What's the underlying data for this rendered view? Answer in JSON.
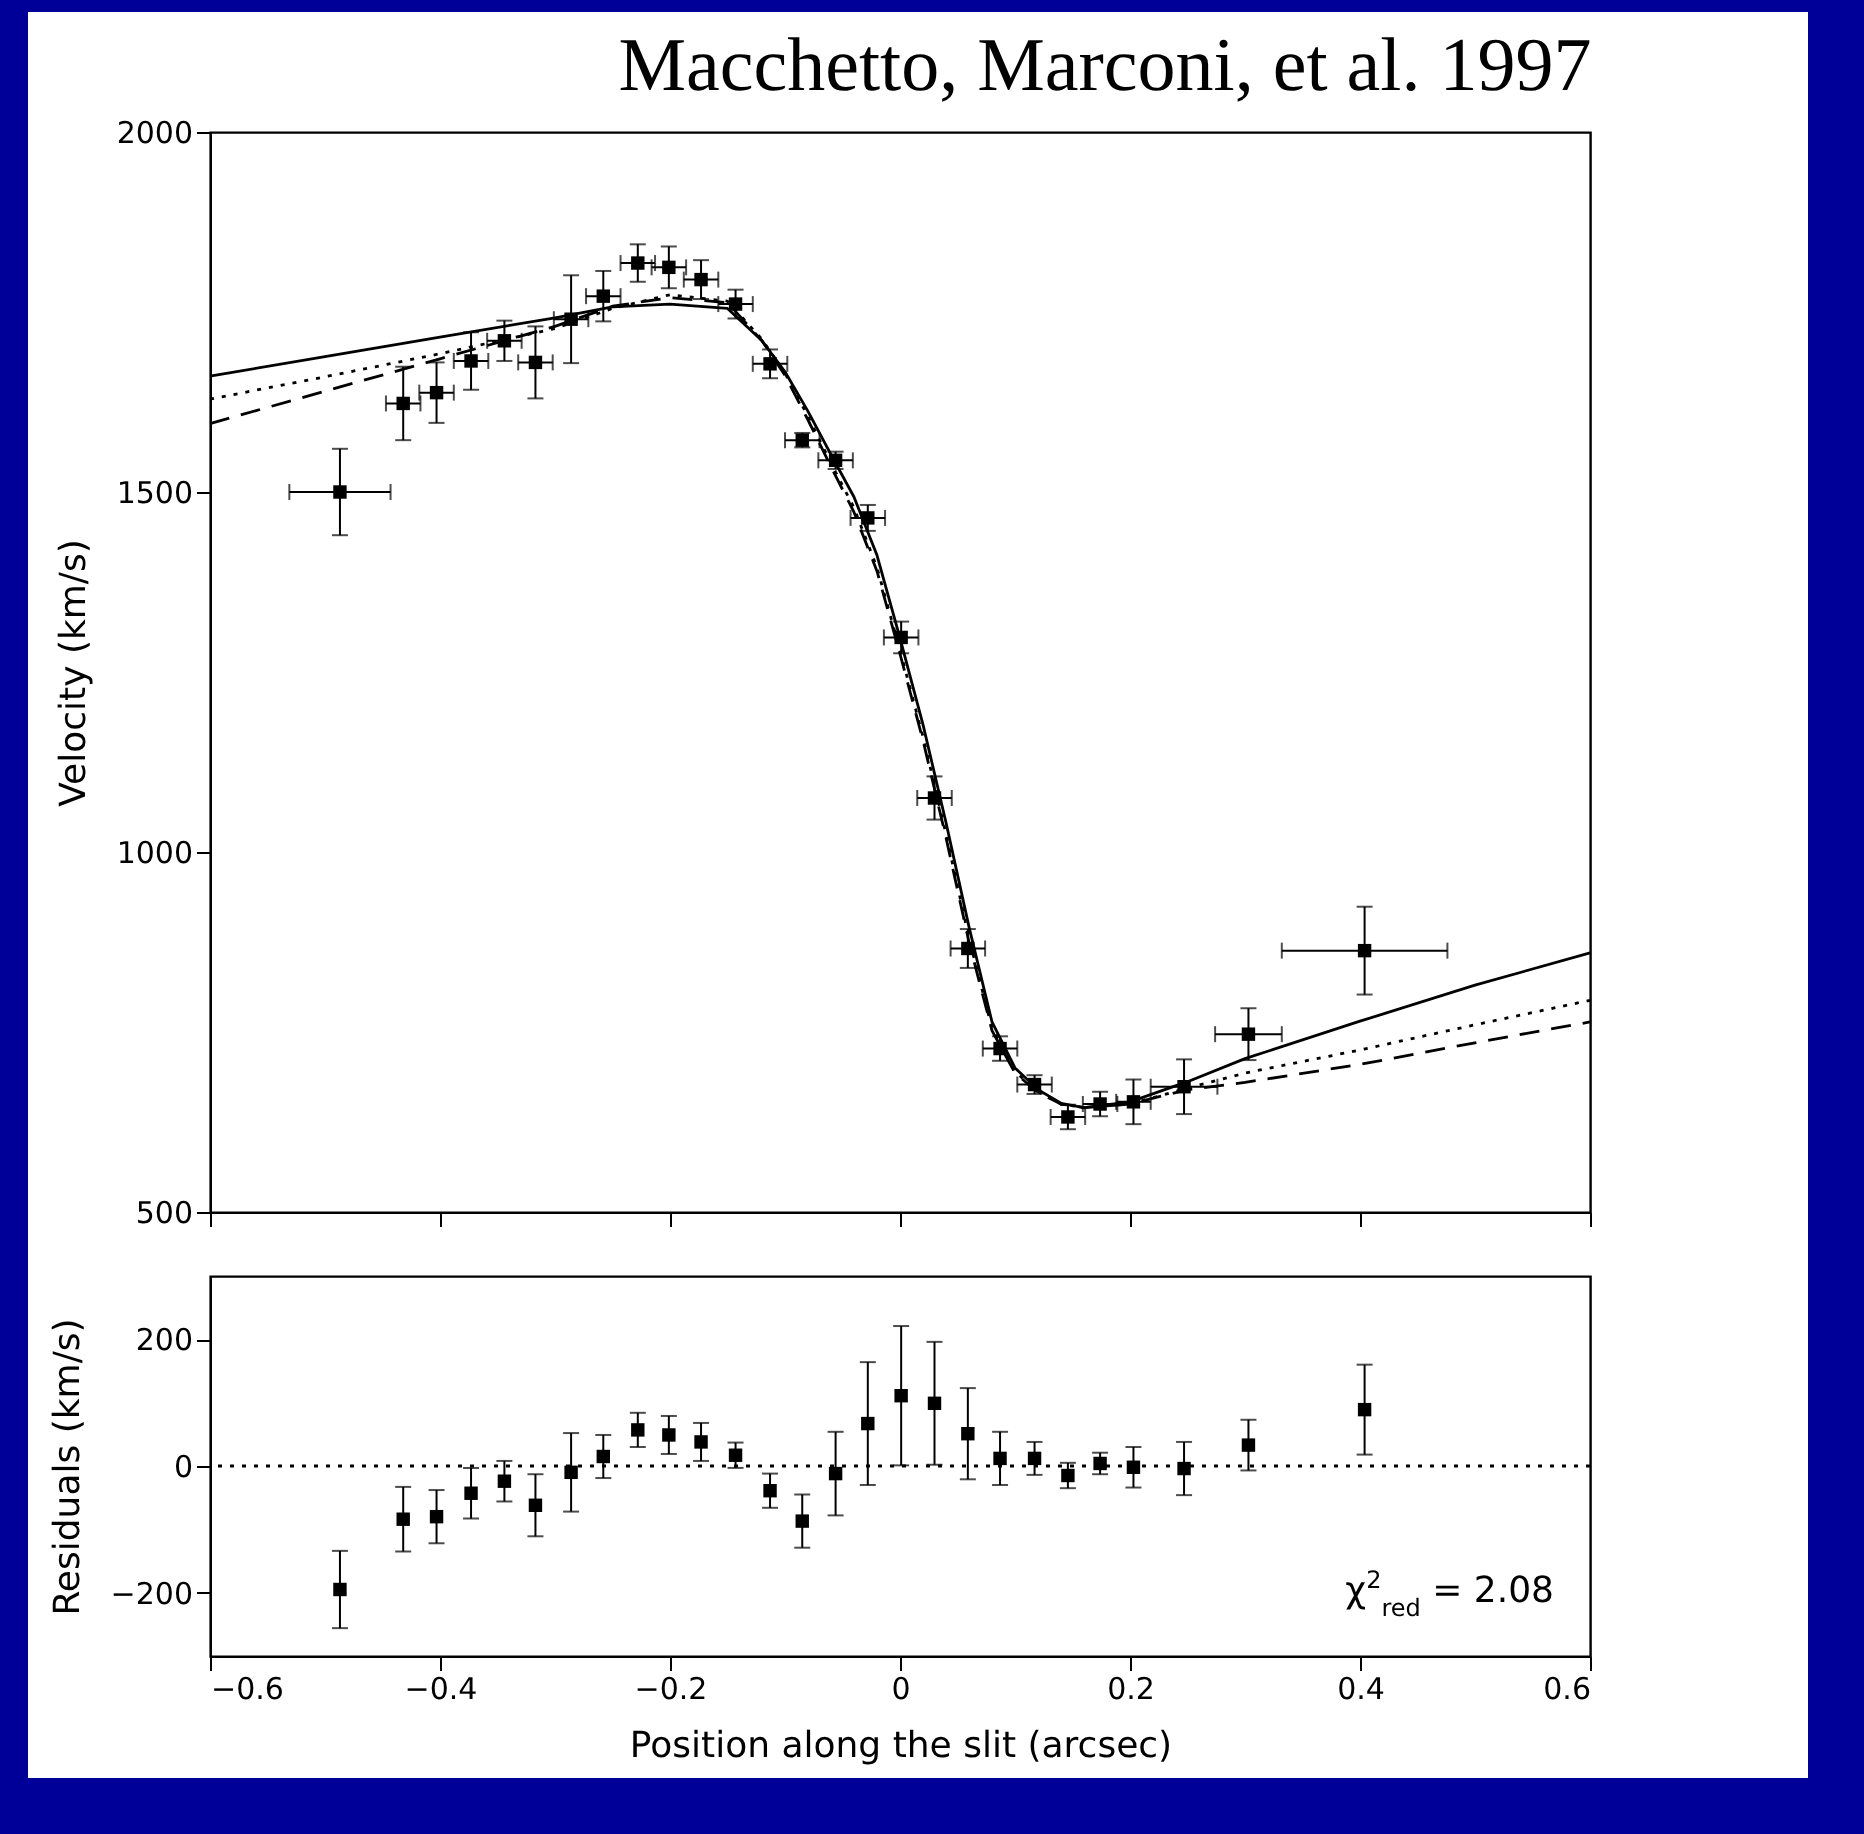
{
  "chart_data": [
    {
      "type": "scatter",
      "title": "Macchetto, Marconi, et al. 1997",
      "ylabel": "Velocity (km/s)",
      "xlim": [
        -0.6,
        0.6
      ],
      "xticks": [
        -0.6,
        -0.4,
        -0.2,
        0,
        0.2,
        0.4,
        0.6
      ],
      "ylim": [
        500,
        2000
      ],
      "yticks": [
        500,
        1000,
        1500,
        2000
      ],
      "tick_labels": "y",
      "series": [
        {
          "marker": "square",
          "color": "#000000",
          "x": [
            -0.487,
            -0.432,
            -0.403,
            -0.373,
            -0.344,
            -0.317,
            -0.286,
            -0.258,
            -0.228,
            -0.201,
            -0.173,
            -0.143,
            -0.113,
            -0.085,
            -0.056,
            -0.028,
            0.001,
            0.03,
            0.059,
            0.087,
            0.117,
            0.146,
            0.174,
            0.203,
            0.247,
            0.303,
            0.404
          ],
          "values": [
            1500,
            1623,
            1638,
            1682,
            1710,
            1680,
            1740,
            1772,
            1818,
            1812,
            1795,
            1761,
            1678,
            1572,
            1544,
            1464,
            1298,
            1075,
            866,
            727,
            677,
            632,
            650,
            653,
            674,
            747,
            863
          ],
          "errors": [
            60,
            51,
            42,
            40,
            28,
            50,
            61,
            35,
            26,
            29,
            27,
            20,
            20,
            10,
            12,
            18,
            22,
            30,
            27,
            17,
            13,
            17,
            17,
            31,
            38,
            36,
            61
          ],
          "xerrors": [
            0.044,
            0.015,
            0.015,
            0.015,
            0.015,
            0.015,
            0.015,
            0.015,
            0.015,
            0.015,
            0.015,
            0.015,
            0.015,
            0.015,
            0.015,
            0.015,
            0.015,
            0.015,
            0.015,
            0.015,
            0.015,
            0.015,
            0.015,
            0.015,
            0.029,
            0.029,
            0.072
          ]
        },
        {
          "type": "line",
          "line_style": "solid",
          "color": "#000000",
          "x": [
            -0.6,
            -0.5,
            -0.4,
            -0.3,
            -0.25,
            -0.2,
            -0.15,
            -0.12,
            -0.1,
            -0.08,
            -0.06,
            -0.04,
            -0.02,
            0,
            0.02,
            0.04,
            0.06,
            0.08,
            0.1,
            0.12,
            0.14,
            0.16,
            0.2,
            0.25,
            0.3,
            0.4,
            0.5,
            0.6
          ],
          "values": [
            1661,
            1688,
            1715,
            1742,
            1757,
            1761,
            1755,
            1710,
            1667,
            1612,
            1552,
            1493,
            1412,
            1297,
            1177,
            1041,
            896,
            764,
            700,
            670,
            651,
            645,
            653,
            681,
            713,
            765,
            815,
            860
          ]
        },
        {
          "type": "line",
          "line_style": "dotted",
          "color": "#000000",
          "x": [
            -0.6,
            -0.5,
            -0.4,
            -0.3,
            -0.25,
            -0.2,
            -0.15,
            -0.12,
            -0.1,
            -0.08,
            -0.06,
            -0.04,
            -0.02,
            0,
            0.02,
            0.04,
            0.06,
            0.08,
            0.1,
            0.12,
            0.14,
            0.16,
            0.2,
            0.25,
            0.3,
            0.4,
            0.5,
            0.6
          ],
          "values": [
            1629,
            1660,
            1692,
            1727,
            1755,
            1774,
            1765,
            1712,
            1665,
            1605,
            1540,
            1478,
            1395,
            1280,
            1160,
            1025,
            880,
            755,
            695,
            667,
            650,
            645,
            650,
            672,
            693,
            725,
            760,
            794
          ]
        },
        {
          "type": "line",
          "line_style": "dashed",
          "color": "#000000",
          "x": [
            -0.6,
            -0.5,
            -0.4,
            -0.3,
            -0.25,
            -0.2,
            -0.15,
            -0.12,
            -0.1,
            -0.08,
            -0.06,
            -0.04,
            -0.02,
            0,
            0.02,
            0.04,
            0.06,
            0.08,
            0.1,
            0.12,
            0.14,
            0.16,
            0.2,
            0.25,
            0.3,
            0.4,
            0.5,
            0.6
          ],
          "values": [
            1595,
            1640,
            1685,
            1730,
            1758,
            1770,
            1763,
            1710,
            1662,
            1600,
            1535,
            1472,
            1390,
            1275,
            1155,
            1020,
            875,
            752,
            693,
            666,
            650,
            645,
            650,
            670,
            680,
            705,
            735,
            764
          ]
        }
      ]
    },
    {
      "type": "scatter",
      "xlabel": "Position along the slit (arcsec)",
      "ylabel": "Residuals (km/s)",
      "xlim": [
        -0.6,
        0.6
      ],
      "xticks": [
        -0.6,
        -0.4,
        -0.2,
        0,
        0.2,
        0.4,
        0.6
      ],
      "ylim": [
        -300,
        300
      ],
      "yticks": [
        -200,
        0,
        200
      ],
      "x": [
        -0.487,
        -0.432,
        -0.403,
        -0.373,
        -0.344,
        -0.317,
        -0.286,
        -0.258,
        -0.228,
        -0.201,
        -0.173,
        -0.143,
        -0.113,
        -0.085,
        -0.056,
        -0.028,
        0.001,
        0.03,
        0.059,
        0.087,
        0.117,
        0.146,
        0.174,
        0.203,
        0.247,
        0.303,
        0.404
      ],
      "series": [
        {
          "marker": "square",
          "color": "#000000",
          "values": [
            -195,
            -84,
            -80,
            -43,
            -24,
            -62,
            -10,
            15,
            57,
            49,
            38,
            17,
            -39,
            -87,
            -12,
            67,
            111,
            99,
            51,
            12,
            12,
            -15,
            4,
            -2,
            -4,
            33,
            89
          ],
          "errors": [
            61,
            51,
            42,
            40,
            32,
            49,
            62,
            34,
            27,
            30,
            30,
            20,
            27,
            42,
            66,
            97,
            110,
            97,
            72,
            42,
            26,
            20,
            17,
            32,
            42,
            40,
            71
          ]
        }
      ],
      "ref_lines": [
        {
          "axis": "y",
          "value": 0,
          "line_style": "dotted",
          "color": "#000000"
        }
      ],
      "annotations": [
        "χ$^{2}$$_{red}$ = 2.08"
      ]
    }
  ]
}
